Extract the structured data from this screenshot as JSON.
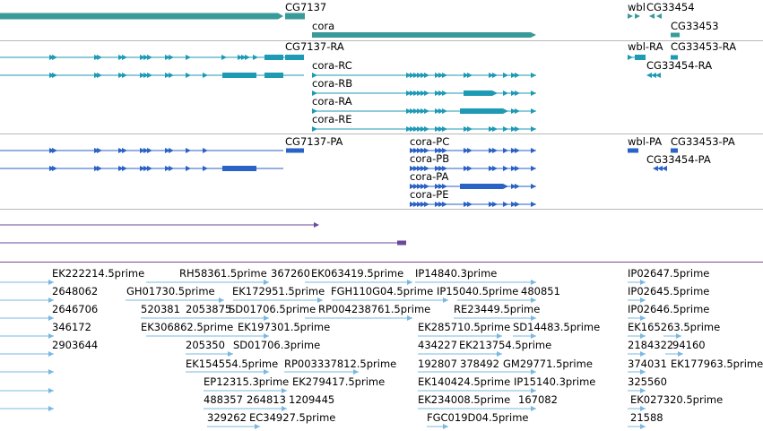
{
  "tracks": {
    "genes": {
      "labels": [
        "CG7137",
        "cora",
        "wbl",
        "CG33454",
        "CG33453"
      ],
      "color": "#3a9a9a"
    },
    "transcripts": {
      "labels": [
        "CG7137-RA",
        "cora-RC",
        "cora-RB",
        "cora-RA",
        "cora-RE",
        "wbl-RA",
        "CG33453-RA",
        "CG33454-RA"
      ],
      "color": "#1e9ab5"
    },
    "proteins": {
      "labels": [
        "CG7137-PA",
        "cora-PC",
        "cora-PB",
        "cora-PA",
        "cora-PE",
        "wbl-PA",
        "CG33453-PA",
        "CG33454-PA"
      ],
      "color": "#2a62c6"
    },
    "other": {
      "color": "#6a4a9a"
    },
    "ests": {
      "labels": [
        "EK222214.5prime",
        "RH58361.5prime",
        "367260",
        "EK063419.5prime",
        "IP14840.3prime",
        "IP02647.5prime",
        "2648062",
        "GH01730.5prime",
        "EK172951.5prime",
        "FGH110G04.5prime",
        "IP15040.5prime",
        "480851",
        "IP02645.5prime",
        "2646706",
        "520381",
        "2053875",
        "SD01706.5prime",
        "RP004238761.5prime",
        "RE23449.5prime",
        "IP02646.5prime",
        "346172",
        "EK306862.5prime",
        "EK197301.5prime",
        "EK285710.5prime",
        "SD14483.5prime",
        "EK165263.5prime",
        "2903644",
        "205350",
        "SD01706.3prime",
        "434227",
        "EK213754.5prime",
        "2184322",
        "94160",
        "EK154554.5prime",
        "RP003337812.5prime",
        "192807",
        "378492",
        "GM29771.5prime",
        "374031",
        "EK177963.5prime",
        "EP12315.3prime",
        "EK279417.5prime",
        "EK140424.5prime",
        "IP15140.3prime",
        "325560",
        "488357",
        "264813",
        "1209445",
        "EK234008.5prime",
        "167082",
        "EK027320.5prime",
        "329262",
        "EC34927.5prime",
        "FGC019D04.5prime",
        "21588"
      ],
      "color": "#7ab8e0"
    }
  }
}
